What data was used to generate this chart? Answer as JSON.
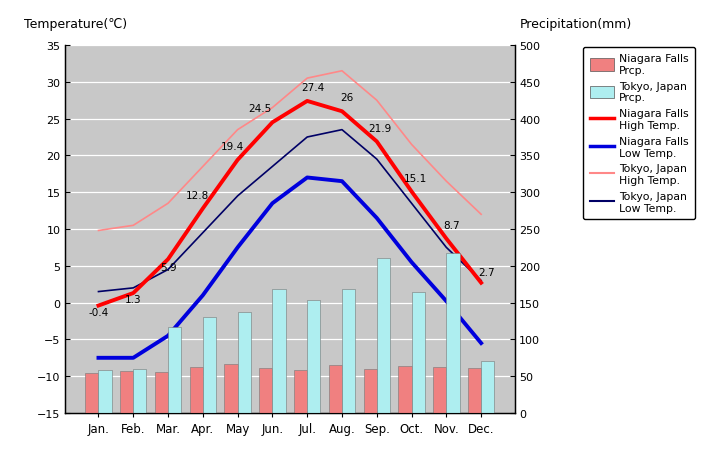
{
  "months": [
    "Jan.",
    "Feb.",
    "Mar.",
    "Apr.",
    "May",
    "Jun.",
    "Jul.",
    "Aug.",
    "Sep.",
    "Oct.",
    "Nov.",
    "Dec."
  ],
  "niagara_high": [
    -0.4,
    1.3,
    5.9,
    12.8,
    19.4,
    24.5,
    27.4,
    26.0,
    21.9,
    15.1,
    8.7,
    2.7
  ],
  "niagara_low": [
    -7.5,
    -7.5,
    -4.5,
    1.0,
    7.5,
    13.5,
    17.0,
    16.5,
    11.5,
    5.5,
    0.2,
    -5.5
  ],
  "tokyo_high": [
    9.8,
    10.5,
    13.5,
    18.5,
    23.5,
    26.5,
    30.5,
    31.5,
    27.5,
    21.5,
    16.5,
    12.0
  ],
  "tokyo_low": [
    1.5,
    2.0,
    4.5,
    9.5,
    14.5,
    18.5,
    22.5,
    23.5,
    19.5,
    13.5,
    7.5,
    3.0
  ],
  "niagara_prcp_mm": [
    54,
    57,
    56,
    62,
    66,
    61,
    58,
    65,
    60,
    64,
    63,
    61
  ],
  "tokyo_prcp_mm": [
    58,
    60,
    117,
    130,
    137,
    168,
    154,
    168,
    210,
    165,
    218,
    70
  ],
  "niagara_high_color": "#FF0000",
  "niagara_low_color": "#0000DD",
  "tokyo_high_color": "#FF8888",
  "tokyo_low_color": "#000066",
  "niagara_prcp_color": "#F08080",
  "tokyo_prcp_color": "#AEEEF0",
  "plot_area_bg": "#C8C8C8",
  "title_left": "Temperature(℃)",
  "title_right": "Precipitation(mm)",
  "ylim_temp": [
    -15,
    35
  ],
  "ylim_prcp": [
    0,
    500
  ],
  "yticks_temp": [
    -15,
    -10,
    -5,
    0,
    5,
    10,
    15,
    20,
    25,
    30,
    35
  ],
  "yticks_prcp": [
    0,
    50,
    100,
    150,
    200,
    250,
    300,
    350,
    400,
    450,
    500
  ],
  "niagara_high_labels": [
    "-0.4",
    "1.3",
    "5.9",
    "12.8",
    "19.4",
    "24.5",
    "27.4",
    "26",
    "21.9",
    "15.1",
    "8.7",
    "2.7"
  ],
  "label_dx": [
    0,
    0,
    0,
    -0.15,
    -0.15,
    -0.35,
    0.15,
    0.15,
    0.1,
    0.1,
    0.15,
    0.15
  ],
  "label_dy": [
    -1.5,
    -1.5,
    -1.8,
    1.2,
    1.2,
    1.2,
    1.2,
    1.2,
    1.2,
    1.2,
    1.2,
    0.8
  ]
}
